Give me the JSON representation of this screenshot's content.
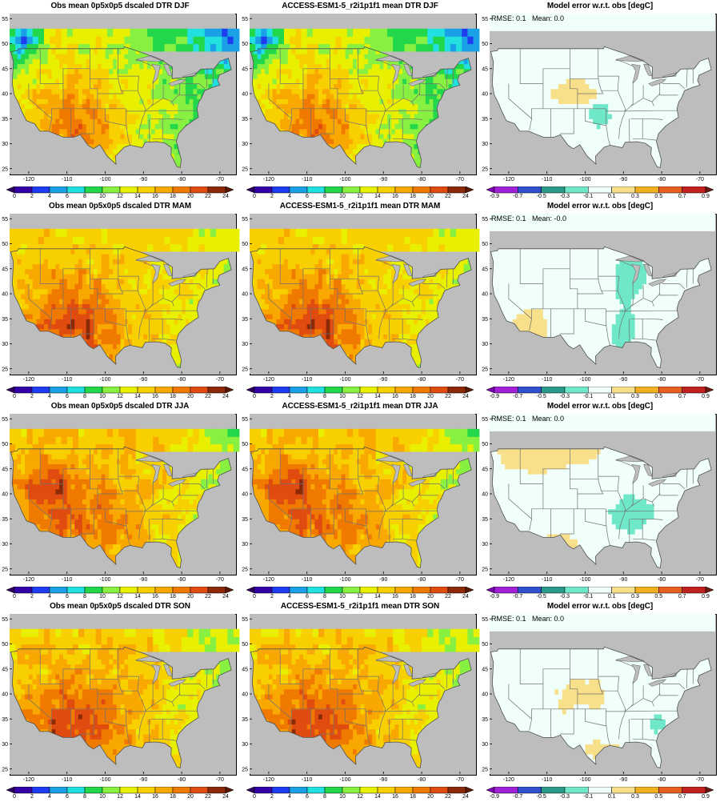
{
  "panels": [
    {
      "title": "Obs mean 0p5x0p5 dscaled DTR DJF",
      "kind": "dtr",
      "season": "DJF",
      "stats": ""
    },
    {
      "title": "ACCESS-ESM1-5_r2i1p1f1 mean DTR DJF",
      "kind": "dtr",
      "season": "DJF",
      "stats": ""
    },
    {
      "title": "Model error w.r.t. obs [degC]",
      "kind": "err",
      "season": "DJF",
      "stats": "RMSE: 0.1   Mean: 0.0"
    },
    {
      "title": "Obs mean 0p5x0p5 dscaled DTR MAM",
      "kind": "dtr",
      "season": "MAM",
      "stats": ""
    },
    {
      "title": "ACCESS-ESM1-5_r2i1p1f1 mean DTR MAM",
      "kind": "dtr",
      "season": "MAM",
      "stats": ""
    },
    {
      "title": "Model error w.r.t. obs [degC]",
      "kind": "err",
      "season": "MAM",
      "stats": "RMSE: 0.1   Mean: -0.0"
    },
    {
      "title": "Obs mean 0p5x0p5 dscaled DTR JJA",
      "kind": "dtr",
      "season": "JJA",
      "stats": ""
    },
    {
      "title": "ACCESS-ESM1-5_r2i1p1f1 mean DTR JJA",
      "kind": "dtr",
      "season": "JJA",
      "stats": ""
    },
    {
      "title": "Model error w.r.t. obs [degC]",
      "kind": "err",
      "season": "JJA",
      "stats": "RMSE: 0.1   Mean: 0.0"
    },
    {
      "title": "Obs mean 0p5x0p5 dscaled DTR SON",
      "kind": "dtr",
      "season": "SON",
      "stats": ""
    },
    {
      "title": "ACCESS-ESM1-5_r2i1p1f1 mean DTR SON",
      "kind": "dtr",
      "season": "SON",
      "stats": ""
    },
    {
      "title": "Model error w.r.t. obs [degC]",
      "kind": "err",
      "season": "SON",
      "stats": "RMSE: 0.1   Mean: 0.0"
    }
  ],
  "axes": {
    "lon_ticks": [
      "-120",
      "-110",
      "-100",
      "-90",
      "-80",
      "-70"
    ],
    "lat_ticks": [
      "25",
      "30",
      "35",
      "40",
      "45",
      "50",
      "55"
    ],
    "lon_range": [
      -125,
      -66
    ],
    "lat_range": [
      24,
      56
    ]
  },
  "colorbars": {
    "dtr": {
      "labels": [
        "0",
        "2",
        "4",
        "6",
        "8",
        "10",
        "12",
        "14",
        "16",
        "18",
        "20",
        "22",
        "24"
      ],
      "colors": [
        "#2d0060",
        "#3300a8",
        "#1e3cf0",
        "#1aa0e6",
        "#22e0e0",
        "#22d84a",
        "#88f040",
        "#e8f000",
        "#f8d000",
        "#f8a800",
        "#f07a00",
        "#e04c10",
        "#8c2a08",
        "#5a1800"
      ]
    },
    "err": {
      "labels": [
        "-0.9",
        "-0.7",
        "-0.5",
        "-0.3",
        "-0.1",
        "0.1",
        "0.3",
        "0.5",
        "0.7",
        "0.9"
      ],
      "colors": [
        "#7a00b0",
        "#a020d8",
        "#3050d0",
        "#2a9a8a",
        "#6ee8c8",
        "#f0fffa",
        "#f8e08a",
        "#f0b020",
        "#e86020",
        "#c02020",
        "#6a1a10"
      ]
    }
  },
  "colors": {
    "land_outside": "#bdbdbd",
    "border_lines": "#707070"
  }
}
